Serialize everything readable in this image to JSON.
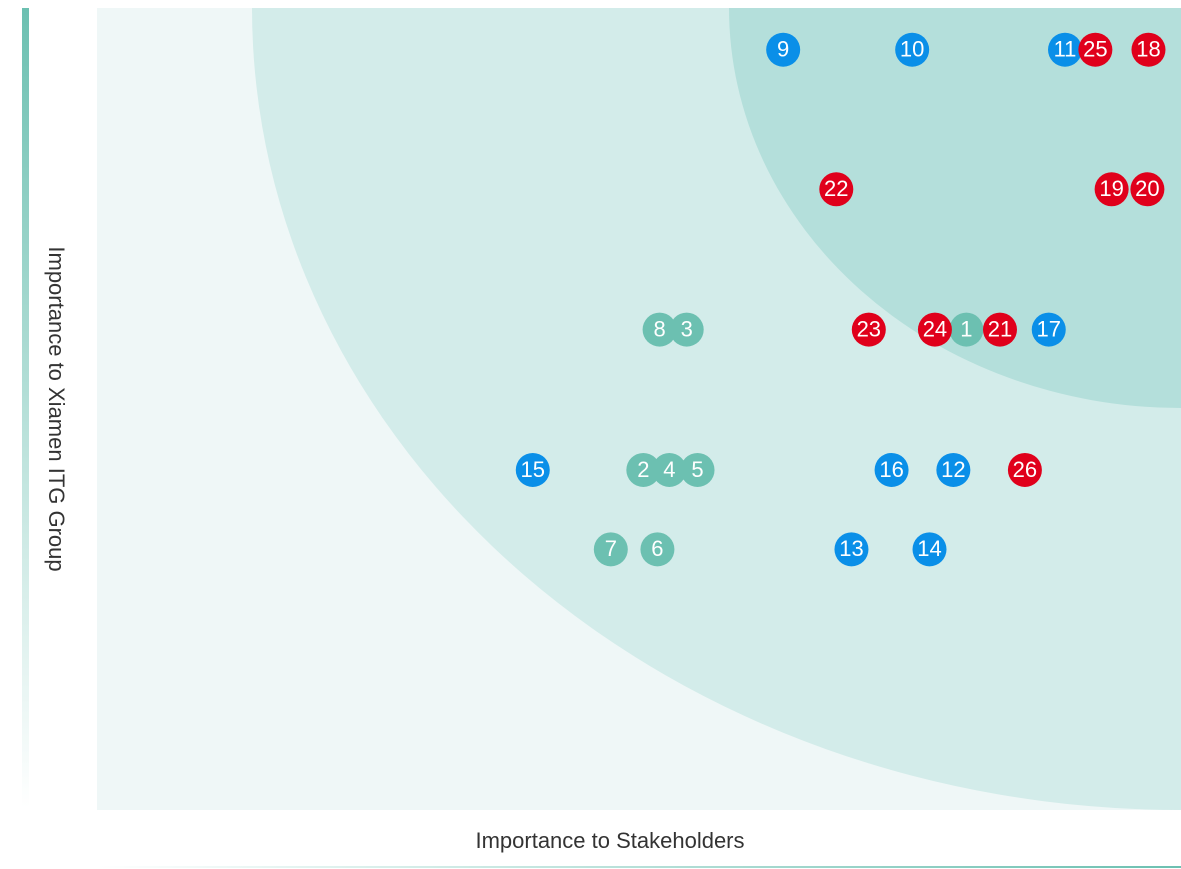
{
  "chart_data": {
    "type": "scatter",
    "xlabel": "Importance to Stakeholders",
    "ylabel": "Importance to Xiamen ITG Group",
    "xlim": [
      0,
      100
    ],
    "ylim": [
      0,
      100
    ],
    "series": [
      {
        "color": "#6cc0b1",
        "labels": [
          "8",
          "3",
          "1",
          "2",
          "4",
          "5",
          "7",
          "6"
        ],
        "x": [
          51.9,
          54.4,
          80.2,
          50.4,
          52.8,
          55.4,
          47.4,
          51.7
        ],
        "y": [
          59.9,
          59.9,
          59.9,
          42.4,
          42.4,
          42.4,
          32.5,
          32.5
        ]
      },
      {
        "color": "#0a8fe8",
        "labels": [
          "9",
          "10",
          "11",
          "15",
          "16",
          "12",
          "13",
          "14",
          "17"
        ],
        "x": [
          63.3,
          75.2,
          89.3,
          40.2,
          73.3,
          79.0,
          69.6,
          76.8,
          87.8
        ],
        "y": [
          94.8,
          94.8,
          94.8,
          42.4,
          42.4,
          42.4,
          32.5,
          32.5,
          59.9
        ]
      },
      {
        "color": "#e0001b",
        "labels": [
          "25",
          "18",
          "22",
          "19",
          "20",
          "23",
          "24",
          "21",
          "26"
        ],
        "x": [
          92.1,
          97.0,
          68.2,
          93.6,
          96.9,
          71.2,
          77.3,
          83.3,
          85.6
        ],
        "y": [
          94.8,
          94.8,
          77.4,
          77.4,
          77.4,
          59.9,
          59.9,
          59.9,
          42.4
        ]
      }
    ]
  }
}
